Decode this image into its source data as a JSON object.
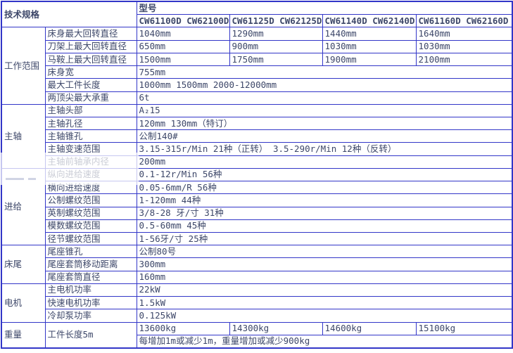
{
  "colors": {
    "border": "#3236c8",
    "text": "#3d4769",
    "background": "#ffffff"
  },
  "header": {
    "spec_label": "技术规格",
    "model_label": "型号",
    "models": [
      "CW61100D CW62100D",
      "CW61125D CW62125D",
      "CW61140D CW62140D",
      "CW61160D CW62160D"
    ]
  },
  "sections": [
    {
      "category": "工作范围",
      "rows": [
        {
          "label": "床身最大回转直径",
          "values": [
            "1040mm",
            "1290mm",
            "1440mm",
            "1640mm"
          ]
        },
        {
          "label": "刀架上最大回转直径",
          "values": [
            "650mm",
            "900mm",
            "1030mm",
            "1030mm"
          ]
        },
        {
          "label": "马鞍上最大回转直径",
          "values": [
            "1500mm",
            "1750mm",
            "1900mm",
            "2100mm"
          ]
        },
        {
          "label": "床身宽",
          "span": "755mm"
        },
        {
          "label": "最大工件长度",
          "span": "1000mm 1500mm 2000-12000mm"
        },
        {
          "label": "两顶尖最大承重",
          "span": "6t"
        }
      ]
    },
    {
      "category": "主轴",
      "rows": [
        {
          "label": "主轴头部",
          "span": "A₂15"
        },
        {
          "label": "主轴孔径",
          "span": "120mm 130mm（特订）"
        },
        {
          "label": "主轴锥孔",
          "span": "公制140#"
        },
        {
          "label": "主轴变速范围",
          "span": "3.15-315r/Min 21种（正转） 3.5-290r/Min 12种（反转）"
        },
        {
          "label": "主轴前轴承内径",
          "span": "200mm"
        }
      ]
    },
    {
      "category": "进给",
      "rows": [
        {
          "label": "纵向进给速度",
          "span": "0.1-12r/Min 56种"
        },
        {
          "label": "横向进给速度",
          "span": "0.05-6mm/R 56种"
        },
        {
          "label": "公制螺纹范围",
          "span": "1-120mm 44种"
        },
        {
          "label": "英制螺纹范围",
          "span": "3/8-28 牙/寸 31种"
        },
        {
          "label": "模数螺纹范围",
          "span": "0.5-60mm 45种"
        },
        {
          "label": "径节螺纹范围",
          "span": "1-56牙/寸 25种"
        }
      ]
    },
    {
      "category": "床尾",
      "rows": [
        {
          "label": "尾座锥孔",
          "span": "公制80号"
        },
        {
          "label": "尾座套筒移动距离",
          "span": "300mm"
        },
        {
          "label": "尾座套筒直径",
          "span": "160mm"
        }
      ]
    },
    {
      "category": "电机",
      "rows": [
        {
          "label": "主电机功率",
          "span": "22kW"
        },
        {
          "label": "快速电机功率",
          "span": "1.5kW"
        },
        {
          "label": "冷却泵功率",
          "span": "0.125kW"
        }
      ]
    },
    {
      "category": "重量",
      "rows": [
        {
          "label": "工件长度5m",
          "label_rowspan": 2,
          "values": [
            "13600kg",
            "14300kg",
            "14600kg",
            "15100kg"
          ]
        },
        {
          "note": "每增加1m或减少1m，重量增加或减少900kg"
        }
      ]
    }
  ]
}
